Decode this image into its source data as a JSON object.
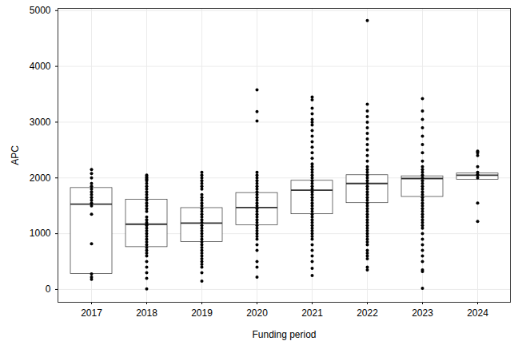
{
  "chart_data": {
    "type": "box",
    "x_label": "Funding period",
    "y_label": "APC",
    "categories": [
      "2017",
      "2018",
      "2019",
      "2020",
      "2021",
      "2022",
      "2023",
      "2024"
    ],
    "q1": [
      280,
      760,
      850,
      1150,
      1350,
      1550,
      1660,
      1970
    ],
    "median": [
      1530,
      1170,
      1190,
      1470,
      1780,
      1900,
      1990,
      2050
    ],
    "q3": [
      1820,
      1610,
      1460,
      1730,
      1950,
      2050,
      2030,
      2080
    ],
    "points": [
      [
        2150,
        2080,
        2000,
        1900,
        1850,
        1800,
        1750,
        1700,
        1650,
        1600,
        1550,
        1500,
        1350,
        820,
        280,
        220,
        180
      ],
      [
        2050,
        2020,
        2000,
        1980,
        1950,
        1900,
        1850,
        1800,
        1750,
        1700,
        1650,
        1600,
        1550,
        1500,
        1450,
        1400,
        1300,
        1250,
        1200,
        1170,
        1150,
        1100,
        1050,
        1000,
        950,
        900,
        850,
        800,
        750,
        700,
        650,
        600,
        500,
        400,
        300,
        200,
        10
      ],
      [
        2100,
        2050,
        2000,
        1950,
        1900,
        1850,
        1800,
        1700,
        1650,
        1600,
        1550,
        1500,
        1450,
        1400,
        1350,
        1300,
        1250,
        1200,
        1150,
        1100,
        1050,
        1000,
        950,
        900,
        850,
        800,
        750,
        700,
        650,
        600,
        550,
        500,
        450,
        400,
        300,
        150
      ],
      [
        3580,
        3190,
        3020,
        2100,
        2050,
        2000,
        1950,
        1900,
        1850,
        1800,
        1750,
        1700,
        1650,
        1600,
        1550,
        1500,
        1450,
        1400,
        1350,
        1300,
        1250,
        1200,
        1150,
        1100,
        1050,
        1000,
        950,
        900,
        800,
        700,
        500,
        400,
        220
      ],
      [
        3450,
        3400,
        3250,
        3150,
        3050,
        3000,
        2950,
        2850,
        2750,
        2650,
        2550,
        2450,
        2350,
        2250,
        2200,
        2150,
        2100,
        2050,
        2000,
        1950,
        1900,
        1850,
        1800,
        1750,
        1700,
        1650,
        1600,
        1550,
        1500,
        1450,
        1400,
        1350,
        1300,
        1250,
        1200,
        1150,
        1100,
        1050,
        1000,
        950,
        900,
        800,
        700,
        600,
        500,
        380,
        250
      ],
      [
        4820,
        3320,
        3200,
        3100,
        3000,
        2900,
        2800,
        2700,
        2600,
        2500,
        2400,
        2300,
        2200,
        2150,
        2100,
        2050,
        2000,
        1950,
        1900,
        1850,
        1800,
        1750,
        1700,
        1650,
        1600,
        1550,
        1500,
        1450,
        1400,
        1350,
        1300,
        1250,
        1200,
        1150,
        1100,
        1050,
        1000,
        950,
        900,
        850,
        800,
        700,
        650,
        600,
        550,
        400,
        350
      ],
      [
        3420,
        3200,
        3050,
        2900,
        2750,
        2600,
        2450,
        2300,
        2200,
        2150,
        2100,
        2050,
        2000,
        1950,
        1900,
        1850,
        1800,
        1750,
        1700,
        1650,
        1600,
        1550,
        1500,
        1450,
        1400,
        1350,
        1300,
        1250,
        1200,
        1150,
        1100,
        1000,
        900,
        800,
        700,
        600,
        500,
        350,
        320,
        20
      ],
      [
        2480,
        2450,
        2400,
        2200,
        2100,
        2060,
        2050,
        2000,
        1550,
        1220
      ]
    ],
    "color": "#000000",
    "ylim": [
      -230,
      5040
    ],
    "yticks": [
      0,
      1000,
      2000,
      3000,
      4000,
      5000
    ],
    "grid": true
  }
}
